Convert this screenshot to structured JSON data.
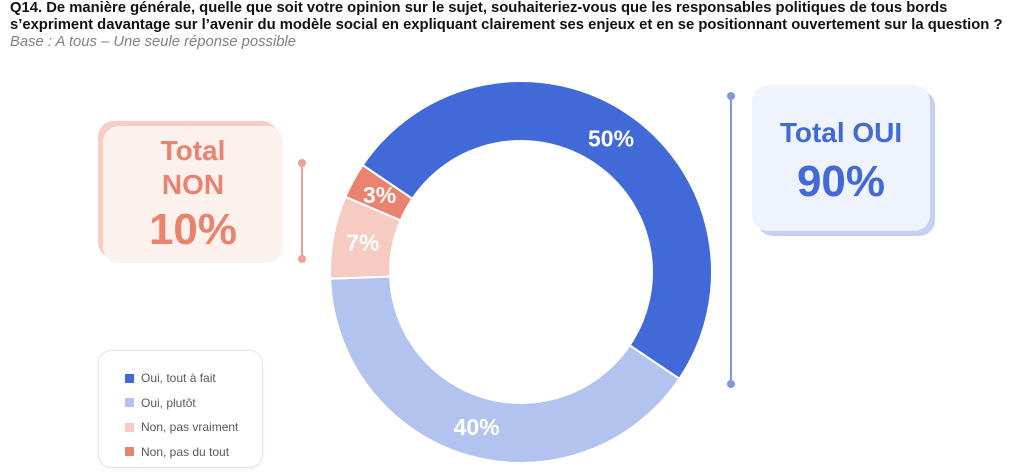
{
  "chart_data": {
    "type": "pie",
    "donut": true,
    "title": [
      "Q14. De manière générale, quelle que soit votre opinion sur le sujet, souhaiteriez-vous que les responsables politiques de tous bords",
      "s’expriment davantage sur l’avenir du modèle social en expliquant clairement ses enjeux et en se positionnant ouvertement sur la question ?"
    ],
    "subtitle": "Base : A tous – Une seule réponse possible",
    "categories": [
      "Oui, tout à fait",
      "Oui, plutôt",
      "Non, pas vraiment",
      "Non, pas du tout"
    ],
    "values": [
      50,
      40,
      7,
      3
    ],
    "data_labels": [
      "50%",
      "40%",
      "7%",
      "3%"
    ],
    "colors": [
      "#4169D8",
      "#B3C3EF",
      "#F6CBC2",
      "#E9826F"
    ],
    "legend": {
      "placement": "bottom-left"
    },
    "annotations": {
      "total_oui": {
        "label": "Total OUI",
        "value": "90%",
        "color": "#4169D8"
      },
      "total_non": {
        "label": [
          "Total",
          "NON"
        ],
        "value": "10%",
        "color": "#E9826F"
      }
    }
  }
}
